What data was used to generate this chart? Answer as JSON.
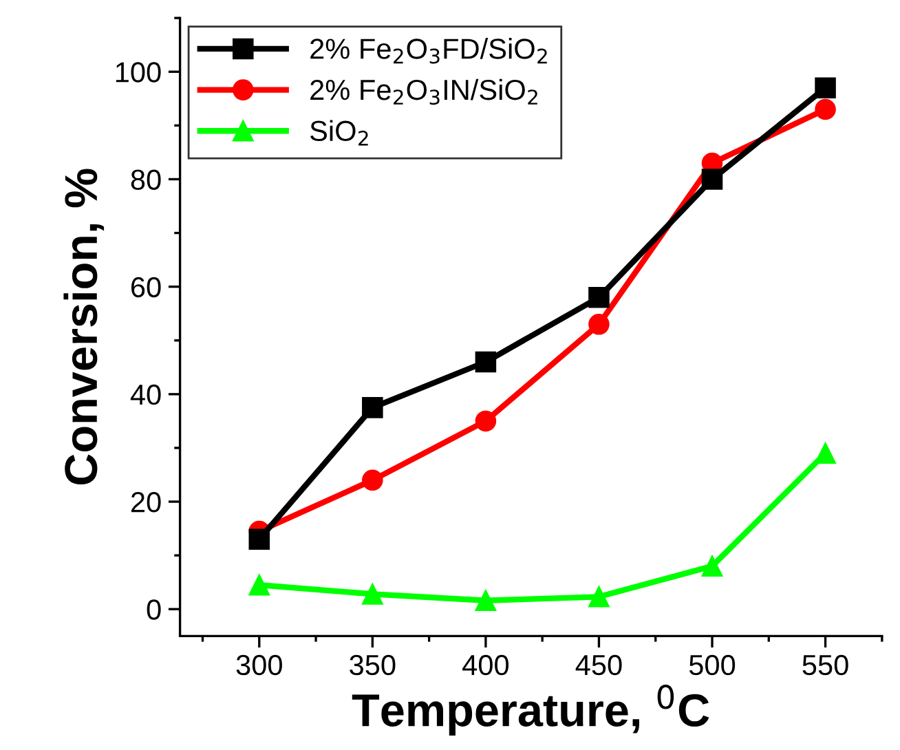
{
  "chart_data": {
    "type": "line",
    "xlabel": "Temperature, $^{0}$C",
    "ylabel": "Conversion, %",
    "x": [
      300,
      350,
      400,
      450,
      500,
      550
    ],
    "series": [
      {
        "name": "2% Fe$_{2}$O$_{3}$FD/SiO$_{2}$",
        "color": "#000000",
        "marker": "square",
        "values": [
          13,
          37.5,
          46,
          58,
          80,
          97
        ]
      },
      {
        "name": "2% Fe$_{2}$O$_{3}$IN/SiO$_{2}$",
        "color": "#ff0000",
        "marker": "circle",
        "values": [
          14.5,
          24,
          35,
          53,
          83,
          93
        ]
      },
      {
        "name": "SiO$_{2}$",
        "color": "#00ff00",
        "marker": "triangle",
        "values": [
          4.5,
          2.8,
          1.6,
          2.3,
          8,
          29
        ]
      }
    ],
    "xlim": [
      265,
      575
    ],
    "xticks": [
      300,
      350,
      400,
      450,
      500,
      550
    ],
    "ylim": [
      -5,
      110
    ],
    "yticks": [
      0,
      20,
      40,
      60,
      80,
      100
    ],
    "grid": false,
    "legend": "top left",
    "line_style": "solid"
  }
}
